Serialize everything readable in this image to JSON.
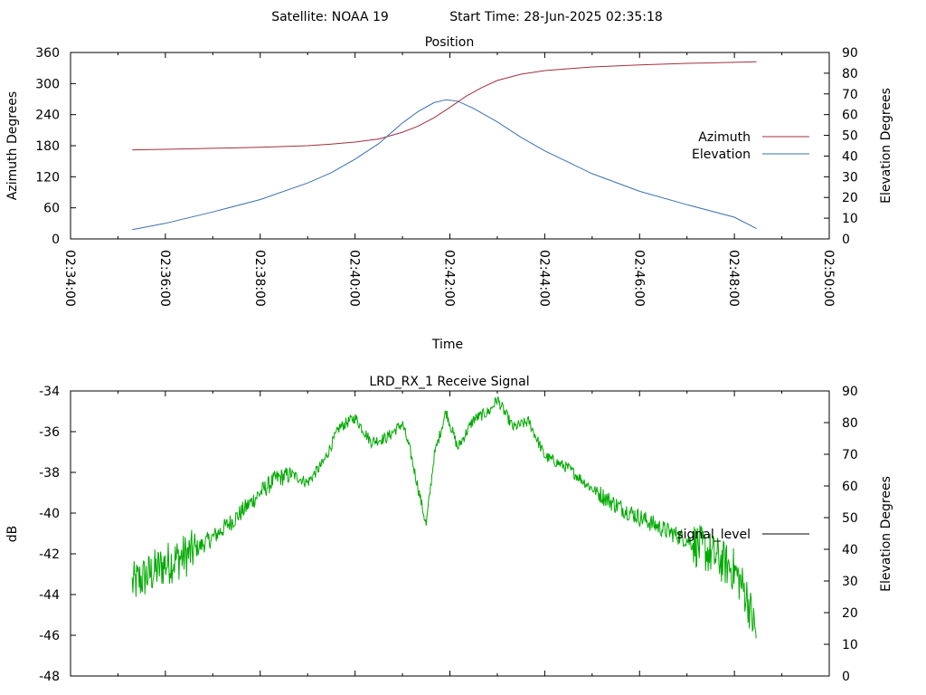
{
  "header": {
    "satellite": "Satellite: NOAA 19",
    "start_time": "Start Time: 28-Jun-2025 02:35:18"
  },
  "chart_data": [
    {
      "type": "line",
      "title": "Position",
      "xlabel": "Time",
      "ylabel": "Azimuth Degrees",
      "y2label": "Elevation Degrees",
      "xlim": [
        "02:34:00",
        "02:50:00"
      ],
      "ylim": [
        0,
        360
      ],
      "y2lim": [
        0,
        90
      ],
      "x_ticks": [
        "02:34:00",
        "02:36:00",
        "02:38:00",
        "02:40:00",
        "02:42:00",
        "02:44:00",
        "02:46:00",
        "02:48:00",
        "02:50:00"
      ],
      "y_ticks": [
        0,
        60,
        120,
        180,
        240,
        300,
        360
      ],
      "y2_ticks": [
        0,
        10,
        20,
        30,
        40,
        50,
        60,
        70,
        80,
        90
      ],
      "legend_position": "right",
      "colors": {
        "azimuth": "#a0303a",
        "elevation": "#3a70b0"
      },
      "series": [
        {
          "name": "Azimuth",
          "axis": "y",
          "x": [
            "02:35:18",
            "02:36:00",
            "02:37:00",
            "02:38:00",
            "02:39:00",
            "02:39:30",
            "02:40:00",
            "02:40:30",
            "02:41:00",
            "02:41:20",
            "02:41:40",
            "02:42:00",
            "02:42:20",
            "02:42:40",
            "02:43:00",
            "02:43:30",
            "02:44:00",
            "02:45:00",
            "02:46:00",
            "02:47:00",
            "02:48:00",
            "02:48:28"
          ],
          "values": [
            172,
            173,
            175,
            177,
            180,
            183,
            187,
            193,
            206,
            218,
            234,
            254,
            275,
            292,
            306,
            318,
            325,
            332,
            336,
            339,
            341,
            342
          ]
        },
        {
          "name": "Elevation",
          "axis": "y2",
          "x": [
            "02:35:18",
            "02:36:00",
            "02:37:00",
            "02:38:00",
            "02:39:00",
            "02:39:30",
            "02:40:00",
            "02:40:30",
            "02:41:00",
            "02:41:20",
            "02:41:40",
            "02:41:55",
            "02:42:10",
            "02:42:30",
            "02:43:00",
            "02:43:30",
            "02:44:00",
            "02:45:00",
            "02:46:00",
            "02:47:00",
            "02:48:00",
            "02:48:28"
          ],
          "values": [
            4.5,
            7.5,
            13,
            19,
            27,
            32,
            38.5,
            46,
            56,
            61.5,
            65.8,
            67.2,
            66.5,
            63,
            56.5,
            49,
            42.5,
            31.5,
            23,
            16.5,
            10.5,
            5
          ]
        }
      ]
    },
    {
      "type": "line",
      "title": "LRD_RX_1 Receive Signal",
      "xlabel": "",
      "ylabel": "dB",
      "y2label": "Elevation Degrees",
      "xlim": [
        "02:34:00",
        "02:50:00"
      ],
      "ylim": [
        -48,
        -34
      ],
      "y2lim": [
        0,
        90
      ],
      "y_ticks": [
        -48,
        -46,
        -44,
        -42,
        -40,
        -38,
        -36,
        -34
      ],
      "y2_ticks": [
        0,
        10,
        20,
        30,
        40,
        50,
        60,
        70,
        80,
        90
      ],
      "legend_position": "right",
      "colors": {
        "signal_level": "#00aa00",
        "legend_line": "#000000"
      },
      "series": [
        {
          "name": "signal_level",
          "x": [
            "02:35:18",
            "02:35:40",
            "02:36:00",
            "02:36:30",
            "02:37:00",
            "02:37:30",
            "02:38:00",
            "02:38:20",
            "02:38:40",
            "02:39:00",
            "02:39:20",
            "02:39:40",
            "02:40:00",
            "02:40:20",
            "02:40:40",
            "02:41:00",
            "02:41:10",
            "02:41:20",
            "02:41:30",
            "02:41:40",
            "02:41:55",
            "02:42:10",
            "02:42:30",
            "02:42:50",
            "02:43:00",
            "02:43:20",
            "02:43:40",
            "02:44:00",
            "02:44:30",
            "02:45:00",
            "02:45:30",
            "02:46:00",
            "02:46:30",
            "02:47:00",
            "02:47:30",
            "02:48:00",
            "02:48:15",
            "02:48:28"
          ],
          "values": [
            -43.5,
            -43.0,
            -42.5,
            -42.0,
            -41.2,
            -40.2,
            -39.0,
            -38.3,
            -38.1,
            -38.5,
            -37.5,
            -35.8,
            -35.3,
            -36.5,
            -36.3,
            -35.6,
            -37.0,
            -38.8,
            -40.6,
            -37.2,
            -35.0,
            -36.8,
            -35.4,
            -35.0,
            -34.4,
            -35.8,
            -35.5,
            -37.2,
            -37.8,
            -38.8,
            -39.6,
            -40.2,
            -40.8,
            -41.3,
            -42.0,
            -42.8,
            -44.0,
            -46.0
          ]
        }
      ]
    }
  ]
}
